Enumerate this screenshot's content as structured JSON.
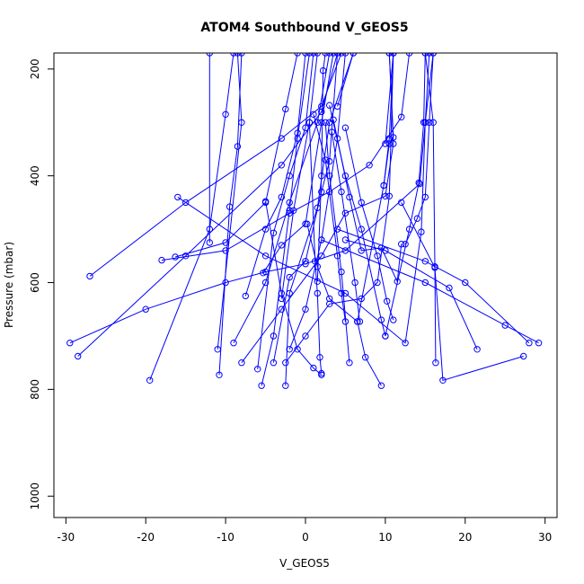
{
  "chart_data": {
    "type": "line",
    "title": "ATOM4 Southbound V_GEOS5",
    "xlabel": "V_GEOS5",
    "ylabel": "Pressure (mbar)",
    "xlim": [
      -31.5,
      31.5
    ],
    "ylim": [
      1040,
      170
    ],
    "y_reversed": true,
    "xticks": [
      -30,
      -20,
      -10,
      0,
      10,
      20,
      30
    ],
    "yticks": [
      200,
      400,
      600,
      800,
      1000
    ],
    "grid": false,
    "legend": "none",
    "color": "#0000ff",
    "marker": "open-circle",
    "series": [
      {
        "points": [
          [
            -29.5,
            713
          ],
          [
            -20,
            650
          ],
          [
            -10,
            600
          ],
          [
            -5,
            580
          ],
          [
            0,
            565
          ],
          [
            5,
            540
          ],
          [
            14.3,
            415
          ],
          [
            15,
            300
          ],
          [
            16,
            170
          ]
        ]
      },
      {
        "points": [
          [
            -28.5,
            738
          ],
          [
            -15,
            550
          ],
          [
            -3,
            380
          ],
          [
            2,
            280
          ],
          [
            4,
            170
          ]
        ]
      },
      {
        "points": [
          [
            -27,
            588
          ],
          [
            -15,
            450
          ],
          [
            -3,
            330
          ],
          [
            2,
            270
          ],
          [
            4.5,
            170
          ]
        ]
      },
      {
        "points": [
          [
            -19.5,
            783
          ],
          [
            -12,
            500
          ],
          [
            -10,
            285
          ],
          [
            -9,
            170
          ]
        ]
      },
      {
        "points": [
          [
            -18,
            558
          ],
          [
            -10,
            540
          ],
          [
            -2,
            470
          ],
          [
            3,
            430
          ],
          [
            8,
            380
          ],
          [
            12,
            290
          ],
          [
            13,
            170
          ]
        ]
      },
      {
        "points": [
          [
            -16.3,
            552
          ],
          [
            -10,
            525
          ],
          [
            -5,
            450
          ],
          [
            -2.5,
            275
          ],
          [
            -1,
            170
          ]
        ]
      },
      {
        "points": [
          [
            -16,
            440
          ],
          [
            -5,
            550
          ],
          [
            5,
            620
          ],
          [
            12.5,
            713
          ],
          [
            14.5,
            505
          ],
          [
            15,
            300
          ],
          [
            15.5,
            170
          ]
        ]
      },
      {
        "points": [
          [
            -12,
            525
          ],
          [
            -12,
            170
          ]
        ]
      },
      {
        "points": [
          [
            -11,
            725
          ],
          [
            -8,
            300
          ],
          [
            -8.5,
            170
          ]
        ]
      },
      {
        "points": [
          [
            -10.8,
            773
          ],
          [
            -9.5,
            458
          ],
          [
            -8.5,
            345
          ],
          [
            -8,
            170
          ]
        ]
      },
      {
        "points": [
          [
            -9,
            713
          ],
          [
            -5,
            600
          ],
          [
            -2,
            450
          ],
          [
            1.5,
            300
          ],
          [
            3,
            170
          ]
        ]
      },
      {
        "points": [
          [
            -8,
            750
          ],
          [
            -3,
            650
          ],
          [
            2,
            550
          ],
          [
            5,
            470
          ],
          [
            10,
            438
          ],
          [
            11,
            340
          ],
          [
            10.5,
            170
          ]
        ]
      },
      {
        "points": [
          [
            -7.5,
            625
          ],
          [
            -5,
            500
          ],
          [
            -3,
            440
          ],
          [
            -1,
            320
          ],
          [
            0,
            170
          ]
        ]
      },
      {
        "points": [
          [
            -6,
            762
          ],
          [
            -4,
            507
          ],
          [
            -2,
            400
          ],
          [
            0,
            310
          ],
          [
            1,
            170
          ]
        ]
      },
      {
        "points": [
          [
            -5.5,
            793
          ],
          [
            -4,
            700
          ],
          [
            -2,
            465
          ],
          [
            -1,
            330
          ],
          [
            0.5,
            170
          ]
        ]
      },
      {
        "points": [
          [
            -5,
            448
          ],
          [
            -3,
            620
          ],
          [
            -1,
            725
          ],
          [
            1,
            760
          ],
          [
            2,
            773
          ]
        ]
      },
      {
        "points": [
          [
            -5.3,
            582
          ],
          [
            -3,
            530
          ],
          [
            0,
            490
          ],
          [
            2,
            300
          ],
          [
            3.5,
            170
          ]
        ]
      },
      {
        "points": [
          [
            -4,
            750
          ],
          [
            -2,
            590
          ],
          [
            0,
            560
          ],
          [
            2,
            430
          ],
          [
            3,
            373
          ],
          [
            4,
            170
          ]
        ]
      },
      {
        "points": [
          [
            -3,
            630
          ],
          [
            -1.5,
            465
          ],
          [
            0.5,
            300
          ],
          [
            1.5,
            170
          ]
        ]
      },
      {
        "points": [
          [
            -2.5,
            793
          ],
          [
            -2,
            620
          ],
          [
            1.5,
            460
          ],
          [
            3,
            300
          ],
          [
            6,
            170
          ]
        ]
      },
      {
        "points": [
          [
            -2.5,
            750
          ],
          [
            0,
            700
          ],
          [
            3,
            640
          ],
          [
            7,
            630
          ],
          [
            9,
            600
          ],
          [
            10.5,
            438
          ],
          [
            11,
            170
          ]
        ]
      },
      {
        "points": [
          [
            -2,
            725
          ],
          [
            0,
            650
          ],
          [
            2,
            520
          ],
          [
            4,
            330
          ],
          [
            5,
            170
          ]
        ]
      },
      {
        "points": [
          [
            0.2,
            490
          ],
          [
            1.5,
            570
          ],
          [
            3,
            630
          ],
          [
            6.5,
            673
          ],
          [
            7.5,
            740
          ],
          [
            9.5,
            793
          ]
        ]
      },
      {
        "points": [
          [
            0.5,
            300
          ],
          [
            1.2,
            560
          ],
          [
            1.5,
            620
          ],
          [
            1.8,
            740
          ],
          [
            2,
            770
          ]
        ]
      },
      {
        "points": [
          [
            1,
            285
          ],
          [
            2.5,
            370
          ],
          [
            4,
            550
          ],
          [
            4.5,
            620
          ],
          [
            5,
            673
          ]
        ]
      },
      {
        "points": [
          [
            1.5,
            598
          ],
          [
            2,
            400
          ],
          [
            2.2,
            203
          ],
          [
            2.5,
            170
          ]
        ]
      },
      {
        "points": [
          [
            2.5,
            300
          ],
          [
            3,
            400
          ],
          [
            4.5,
            580
          ],
          [
            5.5,
            750
          ]
        ]
      },
      {
        "points": [
          [
            3,
            268
          ],
          [
            5,
            400
          ],
          [
            7,
            500
          ],
          [
            9.5,
            670
          ],
          [
            10,
            700
          ]
        ]
      },
      {
        "points": [
          [
            3.5,
            295
          ],
          [
            5.5,
            440
          ],
          [
            7,
            540
          ],
          [
            9.5,
            535
          ],
          [
            11.5,
            598
          ],
          [
            12,
            528
          ]
        ]
      },
      {
        "points": [
          [
            3.3,
            318
          ],
          [
            4.5,
            430
          ],
          [
            6.2,
            600
          ],
          [
            6.8,
            673
          ]
        ]
      },
      {
        "points": [
          [
            5,
            310
          ],
          [
            7,
            450
          ],
          [
            9,
            550
          ],
          [
            10.2,
            635
          ],
          [
            11,
            670
          ]
        ]
      },
      {
        "points": [
          [
            5,
            520
          ],
          [
            10,
            540
          ],
          [
            18,
            610
          ],
          [
            21.5,
            725
          ]
        ]
      },
      {
        "points": [
          [
            6.5,
            673
          ],
          [
            9.8,
            418
          ],
          [
            10.5,
            340
          ],
          [
            11,
            328
          ],
          [
            10.5,
            170
          ]
        ]
      },
      {
        "points": [
          [
            4,
            270
          ],
          [
            6,
            170
          ]
        ]
      },
      {
        "points": [
          [
            9.8,
            418
          ],
          [
            10.5,
            330
          ],
          [
            11,
            170
          ]
        ]
      },
      {
        "points": [
          [
            10,
            340
          ],
          [
            11,
            170
          ]
        ]
      },
      {
        "points": [
          [
            12.5,
            528
          ],
          [
            14,
            480
          ],
          [
            15,
            440
          ],
          [
            15.5,
            300
          ],
          [
            16,
            170
          ]
        ]
      },
      {
        "points": [
          [
            10,
            700
          ],
          [
            13,
            500
          ],
          [
            14.2,
            413
          ],
          [
            14.8,
            300
          ],
          [
            15,
            170
          ]
        ]
      },
      {
        "points": [
          [
            12,
            450
          ],
          [
            16.2,
            572
          ],
          [
            17.2,
            783
          ],
          [
            27.3,
            738
          ]
        ]
      },
      {
        "points": [
          [
            15,
            170
          ],
          [
            16,
            300
          ],
          [
            16.2,
            570
          ],
          [
            16.3,
            750
          ]
        ]
      },
      {
        "points": [
          [
            2,
            520
          ],
          [
            15,
            600
          ],
          [
            25,
            680
          ],
          [
            29.2,
            713
          ]
        ]
      },
      {
        "points": [
          [
            4,
            500
          ],
          [
            15,
            560
          ],
          [
            20,
            600
          ],
          [
            28,
            713
          ]
        ]
      }
    ]
  }
}
